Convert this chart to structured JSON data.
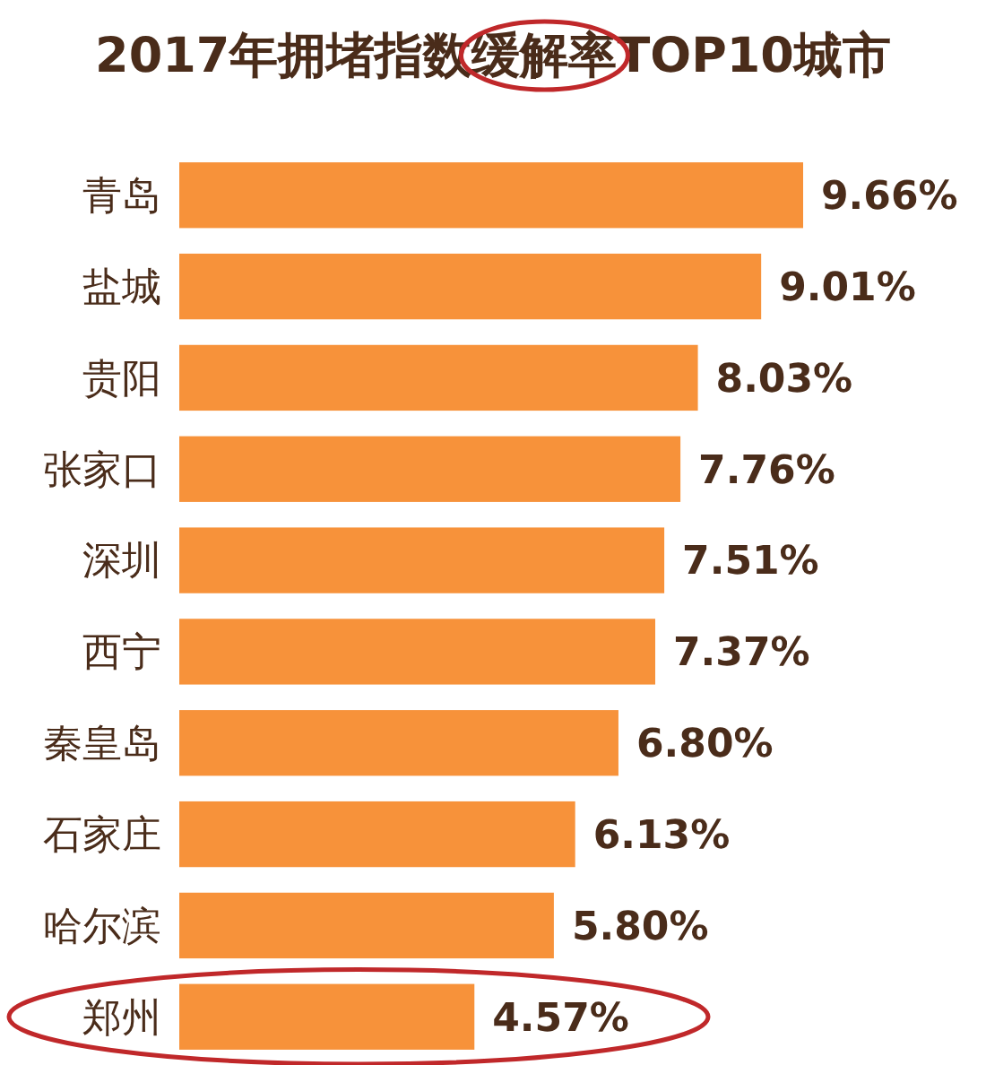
{
  "chart_data": {
    "type": "bar",
    "orientation": "horizontal",
    "title": "2017年拥堵指数缓解率TOP10城市",
    "categories": [
      "青岛",
      "盐城",
      "贵阳",
      "张家口",
      "深圳",
      "西宁",
      "秦皇岛",
      "石家庄",
      "哈尔滨",
      "郑州"
    ],
    "values": [
      9.66,
      9.01,
      8.03,
      7.76,
      7.51,
      7.37,
      6.8,
      6.13,
      5.8,
      4.57
    ],
    "value_labels": [
      "9.66%",
      "9.01%",
      "8.03%",
      "7.76%",
      "7.51%",
      "7.37%",
      "6.80%",
      "6.13%",
      "5.80%",
      "4.57%"
    ],
    "color": "#f7923a"
  }
}
